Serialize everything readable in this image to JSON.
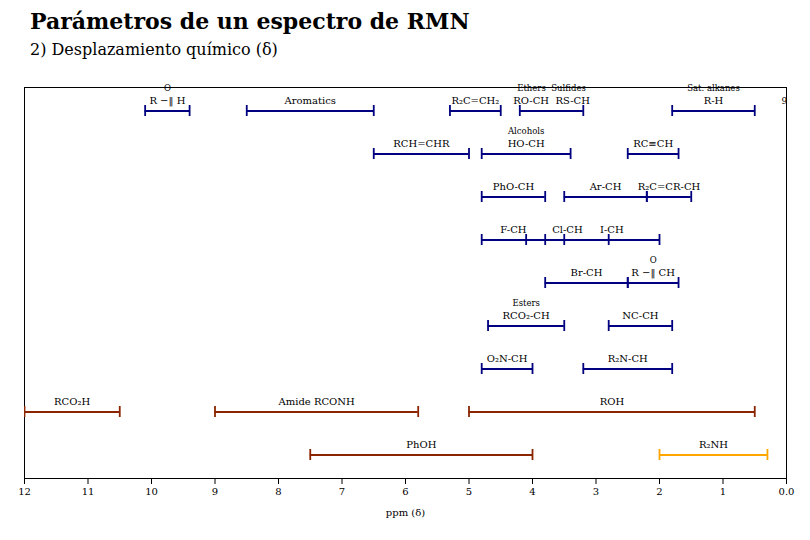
{
  "chart_data": {
    "type": "range",
    "title": "Parámetros de un espectro de RMN",
    "subtitle": "2) Desplazamiento químico (δ)",
    "xlabel": "ppm (δ)",
    "xlim": [
      12.0,
      0.0
    ],
    "xticks": [
      12,
      11,
      10,
      9,
      8,
      7,
      6,
      5,
      4,
      3,
      2,
      1,
      {
        "value": 0,
        "label": "0.0"
      }
    ],
    "grid": false,
    "rows": [
      [
        {
          "x1": 9.4,
          "x2": 10.1,
          "label": "R −‖ H",
          "note": "O",
          "color": "#000080"
        },
        {
          "x1": 6.5,
          "x2": 8.5,
          "label": "Aromatics",
          "color": "#000080"
        },
        {
          "x1": 4.5,
          "x2": 5.3,
          "label": "R₂C=CH₂",
          "color": "#000080"
        },
        {
          "x1": 3.2,
          "x2": 4.2,
          "label": "RO-CH  RS-CH",
          "note": "Ethers  Sulfides",
          "color": "#000080"
        },
        {
          "x1": 0.5,
          "x2": 1.8,
          "label": "R-H",
          "note": "Sat. alkanes",
          "color": "#000080"
        }
      ],
      [
        {
          "x1": 5.0,
          "x2": 6.5,
          "label": "RCH=CHR",
          "color": "#000080"
        },
        {
          "x1": 3.4,
          "x2": 4.8,
          "label": "HO-CH",
          "note": "Alcohols",
          "color": "#000080"
        },
        {
          "x1": 1.7,
          "x2": 2.5,
          "label": "RC≡CH",
          "color": "#000080"
        }
      ],
      [
        {
          "x1": 3.8,
          "x2": 4.8,
          "label": "PhO-CH",
          "color": "#000080"
        },
        {
          "x1": 2.2,
          "x2": 3.5,
          "label": "Ar-CH",
          "color": "#000080"
        },
        {
          "x1": 1.5,
          "x2": 2.2,
          "label": "R₂C=CR-CH",
          "color": "#000080"
        }
      ],
      [
        {
          "x1": 3.8,
          "x2": 4.8,
          "label": "F-CH",
          "color": "#000080"
        },
        {
          "x1": 2.8,
          "x2": 4.1,
          "label": "Cl-CH",
          "color": "#000080"
        },
        {
          "x1": 2.0,
          "x2": 3.5,
          "label": "I-CH",
          "color": "#000080"
        }
      ],
      [
        {
          "x1": 2.5,
          "x2": 3.8,
          "label": "Br-CH",
          "color": "#000080"
        },
        {
          "x1": 1.7,
          "x2": 2.5,
          "label": "R −‖ CH",
          "note": "O",
          "color": "#000080"
        }
      ],
      [
        {
          "x1": 3.5,
          "x2": 4.7,
          "label": "RCO₂-CH",
          "note": "Esters",
          "color": "#000080"
        },
        {
          "x1": 1.8,
          "x2": 2.8,
          "label": "NC-CH",
          "color": "#000080"
        }
      ],
      [
        {
          "x1": 4.0,
          "x2": 4.8,
          "label": "O₂N-CH",
          "color": "#000080"
        },
        {
          "x1": 1.8,
          "x2": 3.2,
          "label": "R₂N-CH",
          "color": "#000080"
        }
      ],
      [
        {
          "x1": 10.5,
          "x2": 12.0,
          "label": "RCO₂H",
          "color": "#8B2500"
        },
        {
          "x1": 5.8,
          "x2": 9.0,
          "label": "Amide RCONH",
          "color": "#8B2500"
        },
        {
          "x1": 0.5,
          "x2": 5.0,
          "label": "ROH",
          "color": "#8B2500"
        }
      ],
      [
        {
          "x1": 4.0,
          "x2": 7.5,
          "label": "PhOH",
          "color": "#8B2500"
        },
        {
          "x1": 0.3,
          "x2": 2.0,
          "label": "R₂NH",
          "color": "#FFA500"
        }
      ]
    ],
    "annotations": [
      {
        "text": "9",
        "x": 0.08
      }
    ]
  }
}
